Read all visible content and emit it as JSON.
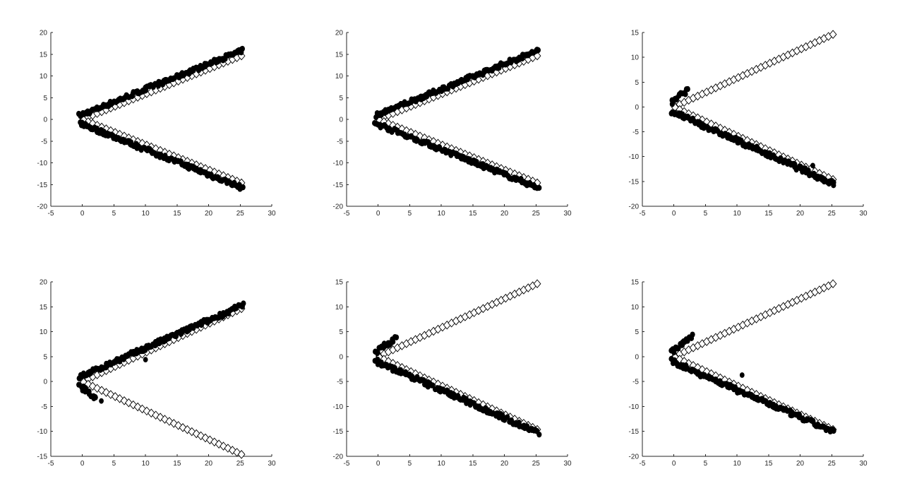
{
  "chart_data": [
    {
      "type": "scatter",
      "panel": "top-left",
      "xlim": [
        -5,
        30
      ],
      "ylim": [
        -20,
        20
      ],
      "xticks": [
        -5,
        0,
        5,
        10,
        15,
        20,
        25,
        30
      ],
      "yticks": [
        -20,
        -15,
        -10,
        -5,
        0,
        5,
        10,
        15,
        20
      ],
      "grid": false,
      "reference": {
        "marker": "open-diamond",
        "upper_branch": true,
        "lower_branch": true,
        "x_range": [
          0.2,
          25.2
        ],
        "slope": 0.58
      },
      "estimate": {
        "marker": "filled-circle",
        "upper": {
          "x_range": [
            -0.4,
            25.4
          ],
          "y_start": 0.9,
          "y_end": 15.9
        },
        "lower": {
          "x_range": [
            -0.4,
            25.4
          ],
          "y_start": -0.9,
          "y_end": -15.8
        },
        "outliers": []
      }
    },
    {
      "type": "scatter",
      "panel": "top-middle",
      "xlim": [
        -5,
        30
      ],
      "ylim": [
        -20,
        20
      ],
      "xticks": [
        -5,
        0,
        5,
        10,
        15,
        20,
        25,
        30
      ],
      "yticks": [
        -20,
        -15,
        -10,
        -5,
        0,
        5,
        10,
        15,
        20
      ],
      "grid": false,
      "reference": {
        "marker": "open-diamond",
        "upper_branch": true,
        "lower_branch": true,
        "x_range": [
          0.2,
          25.2
        ],
        "slope": 0.58
      },
      "estimate": {
        "marker": "filled-circle",
        "upper": {
          "x_range": [
            -0.4,
            25.4
          ],
          "y_start": 0.9,
          "y_end": 15.9
        },
        "lower": {
          "x_range": [
            -0.4,
            25.4
          ],
          "y_start": -0.9,
          "y_end": -15.8
        },
        "outliers": []
      }
    },
    {
      "type": "scatter",
      "panel": "top-right",
      "xlim": [
        -5,
        30
      ],
      "ylim": [
        -20,
        15
      ],
      "xticks": [
        -5,
        0,
        5,
        10,
        15,
        20,
        25,
        30
      ],
      "yticks": [
        -20,
        -15,
        -10,
        -5,
        0,
        5,
        10,
        15
      ],
      "grid": false,
      "reference": {
        "marker": "open-diamond",
        "upper_branch": true,
        "lower_branch": true,
        "x_range": [
          0.2,
          25.2
        ],
        "slope": 0.58
      },
      "estimate": {
        "marker": "filled-circle",
        "upper": {
          "x_range": [
            -0.4,
            2.2
          ],
          "y_start": 0.9,
          "y_end": 3.4
        },
        "lower": {
          "x_range": [
            -0.4,
            25.4
          ],
          "y_start": -0.9,
          "y_end": -15.5
        },
        "outliers": [
          [
            22,
            -11.8
          ]
        ]
      }
    },
    {
      "type": "scatter",
      "panel": "bottom-left",
      "xlim": [
        -5,
        30
      ],
      "ylim": [
        -15,
        20
      ],
      "xticks": [
        -5,
        0,
        5,
        10,
        15,
        20,
        25,
        30
      ],
      "yticks": [
        -15,
        -10,
        -5,
        0,
        5,
        10,
        15,
        20
      ],
      "grid": false,
      "reference": {
        "marker": "open-diamond",
        "upper_branch": true,
        "lower_branch": true,
        "x_range": [
          0.2,
          25.2
        ],
        "slope": 0.58
      },
      "estimate": {
        "marker": "filled-circle",
        "upper": {
          "x_range": [
            -0.4,
            25.4
          ],
          "y_start": 0.9,
          "y_end": 15.3
        },
        "lower": {
          "x_range": [
            -0.4,
            2.2
          ],
          "y_start": -0.9,
          "y_end": -3.4
        },
        "outliers": [
          [
            3,
            -3.9
          ],
          [
            10,
            4.4
          ]
        ]
      }
    },
    {
      "type": "scatter",
      "panel": "bottom-middle",
      "xlim": [
        -5,
        30
      ],
      "ylim": [
        -20,
        15
      ],
      "xticks": [
        -5,
        0,
        5,
        10,
        15,
        20,
        25,
        30
      ],
      "yticks": [
        -20,
        -15,
        -10,
        -5,
        0,
        5,
        10,
        15
      ],
      "grid": false,
      "reference": {
        "marker": "open-diamond",
        "upper_branch": true,
        "lower_branch": true,
        "x_range": [
          0.2,
          25.2
        ],
        "slope": 0.58
      },
      "estimate": {
        "marker": "filled-circle",
        "upper": {
          "x_range": [
            -0.4,
            2.8
          ],
          "y_start": 0.9,
          "y_end": 3.7
        },
        "lower": {
          "x_range": [
            -0.4,
            25.4
          ],
          "y_start": -0.9,
          "y_end": -15.3
        },
        "outliers": []
      }
    },
    {
      "type": "scatter",
      "panel": "bottom-right",
      "xlim": [
        -5,
        30
      ],
      "ylim": [
        -20,
        15
      ],
      "xticks": [
        -5,
        0,
        5,
        10,
        15,
        20,
        25,
        30
      ],
      "yticks": [
        -20,
        -15,
        -10,
        -5,
        0,
        5,
        10,
        15
      ],
      "grid": false,
      "reference": {
        "marker": "open-diamond",
        "upper_branch": true,
        "lower_branch": true,
        "x_range": [
          0.2,
          25.2
        ],
        "slope": 0.58
      },
      "estimate": {
        "marker": "filled-circle",
        "upper": {
          "x_range": [
            -0.4,
            2.8
          ],
          "y_start": 0.9,
          "y_end": 4.0
        },
        "lower": {
          "x_range": [
            -0.4,
            25.4
          ],
          "y_start": -0.9,
          "y_end": -15.2
        },
        "outliers": [
          [
            10.8,
            -3.7
          ]
        ]
      }
    }
  ],
  "colors": {
    "axis": "#262626",
    "marker": "#000000",
    "background": "#ffffff"
  }
}
